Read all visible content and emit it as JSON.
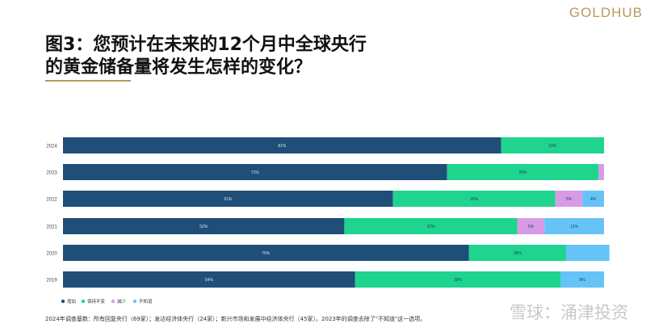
{
  "brand": "GOLDHUB",
  "title_line1": "图3：您预计在未来的12个月中全球央行",
  "title_line2": "的黄金储备量将发生怎样的变化？",
  "footnote": "2024年调查基数：所有回复央行（69家）；发达经济体央行（24家）；新兴市场和发展中经济体央行（45家）。2023年的调查去除了\"不知道\"这一选项。",
  "watermark": "雪球：涌津投资",
  "chart_data": {
    "type": "bar",
    "orientation": "horizontal",
    "stacked": true,
    "categories": [
      "2024",
      "2023",
      "2022",
      "2021",
      "2020",
      "2019"
    ],
    "series": [
      {
        "name": "增加",
        "color": "#1f4e79",
        "values": [
          81,
          71,
          61,
          52,
          75,
          54
        ],
        "labels": [
          "81%",
          "71%",
          "61%",
          "52%",
          "75%",
          "54%"
        ]
      },
      {
        "name": "保持不变",
        "color": "#1ed48f",
        "values": [
          19,
          28,
          30,
          32,
          18,
          38
        ],
        "labels": [
          "19%",
          "28%",
          "30%",
          "32%",
          "18%",
          "38%"
        ]
      },
      {
        "name": "减少",
        "color": "#d79be6",
        "values": [
          0,
          1,
          5,
          5,
          0,
          0
        ],
        "labels": [
          "",
          "",
          "5%",
          "5%",
          "",
          ""
        ]
      },
      {
        "name": "不知道",
        "color": "#66c3f7",
        "values": [
          0,
          0,
          4,
          11,
          8,
          8
        ],
        "labels": [
          "",
          "",
          "4%",
          "11%",
          "",
          "8%"
        ]
      }
    ],
    "xlim": [
      0,
      100
    ],
    "grid": false,
    "legend_position": "bottom-left"
  }
}
